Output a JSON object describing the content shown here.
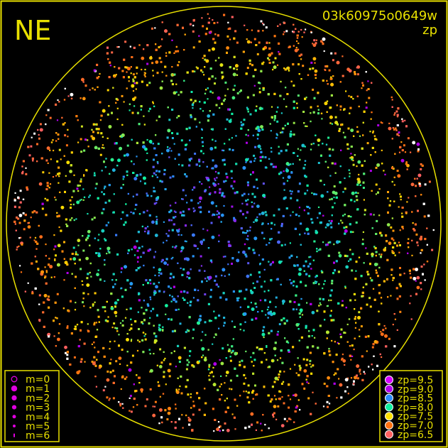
{
  "chart_data": {
    "type": "scatter",
    "title": "03k60975o0649w",
    "subtitle": "zp",
    "corner_label": "NE",
    "frame_color": "#e8e000",
    "background": "#000000",
    "magnitude_legend": {
      "position": "bottom-left",
      "entries": [
        "m=0",
        "m=1",
        "m=2",
        "m=3",
        "m=4",
        "m=5",
        "m=6"
      ],
      "color": "#e000e0"
    },
    "zp_legend": {
      "position": "bottom-right",
      "entries": [
        {
          "label": "zp=9.5",
          "value": 9.5,
          "color": "#d400ff"
        },
        {
          "label": "zp=9.0",
          "value": 9.0,
          "color": "#b000e8"
        },
        {
          "label": "zp=8.5",
          "value": 8.5,
          "color": "#2a8cff"
        },
        {
          "label": "zp=8.0",
          "value": 8.0,
          "color": "#10f0a0"
        },
        {
          "label": "zp=7.5",
          "value": 7.5,
          "color": "#ffe000"
        },
        {
          "label": "zp=7.0",
          "value": 7.0,
          "color": "#ff7010"
        },
        {
          "label": "zp=6.5",
          "value": 6.5,
          "color": "#ff6060"
        }
      ]
    },
    "field_of_view": "all-sky circle",
    "trend": "zp highest (blue/cyan) near centre, decreasing to green, yellow, orange and red toward the horizon"
  }
}
